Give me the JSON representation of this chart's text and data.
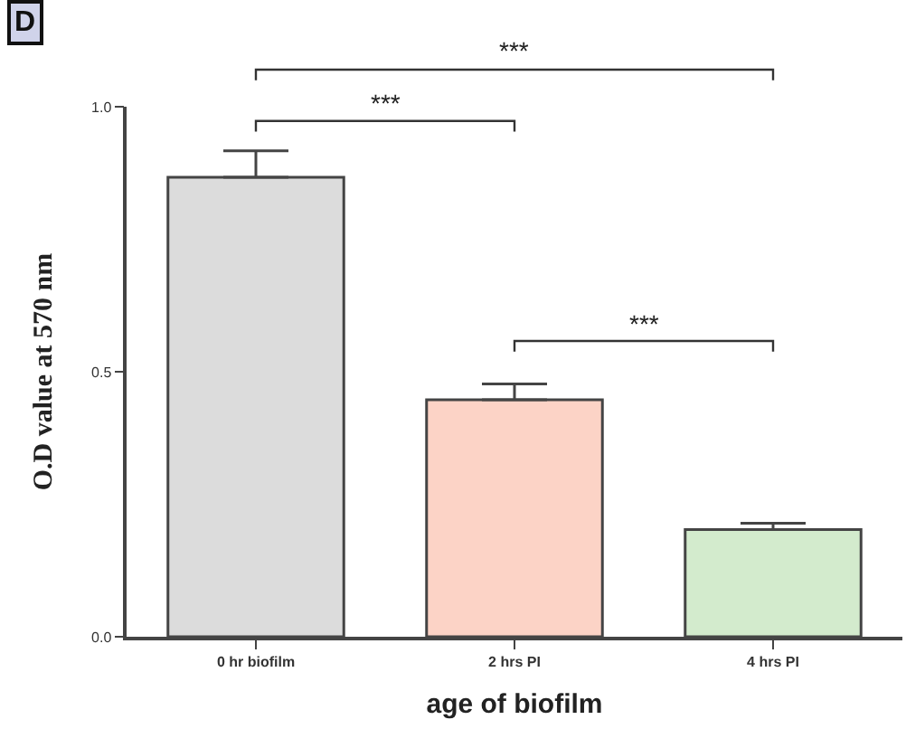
{
  "chart_data": {
    "type": "bar",
    "xlabel": "age of biofilm",
    "ylabel": "O.D value at 570 nm",
    "categories": [
      "0 hr biofilm",
      "2 hrs PI",
      "4 hrs PI"
    ],
    "values": [
      0.867,
      0.447,
      0.202
    ],
    "colors": [
      "#dcdcdc",
      "#fcd3c6",
      "#d3ebcd"
    ],
    "errors": [
      [
        0.867,
        0.917
      ],
      [
        0.447,
        0.477
      ],
      [
        0.202,
        0.214
      ]
    ],
    "ylim": [
      0,
      1
    ],
    "yticks": [
      {
        "value": 0,
        "label": "0.0"
      },
      {
        "value": 0.5,
        "label": "0.5"
      },
      {
        "value": 1,
        "label": "1.0"
      }
    ],
    "annotations": [
      "D",
      "***",
      "***",
      "***"
    ]
  }
}
